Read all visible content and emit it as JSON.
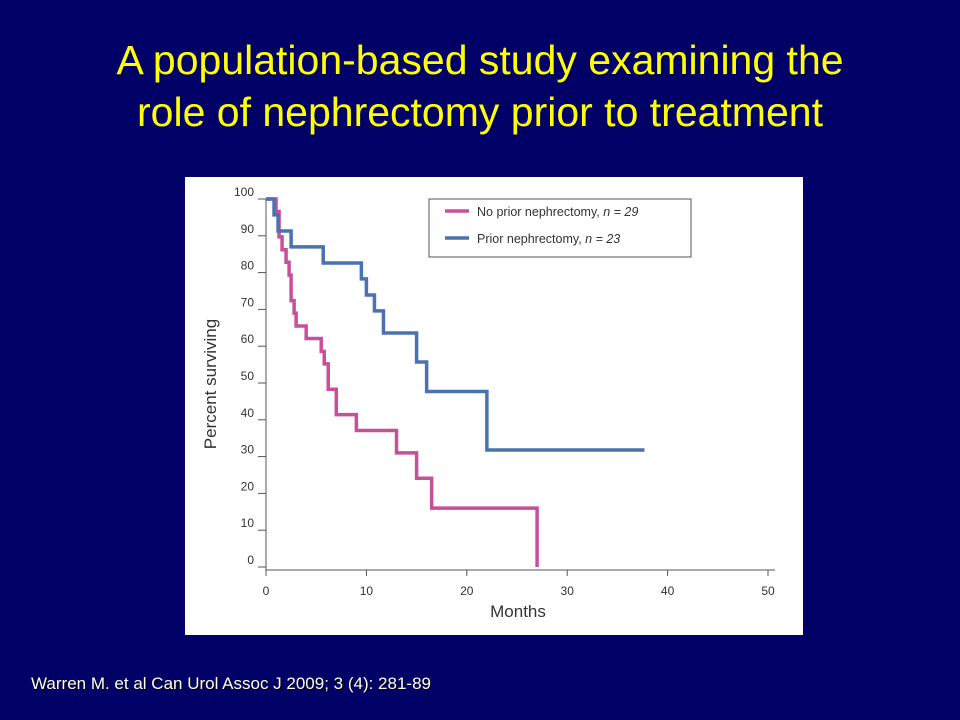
{
  "slide": {
    "title_line1": "A population-based study examining the",
    "title_line2": "role of nephrectomy prior to treatment",
    "citation": "Warren M. et al Can Urol Assoc J 2009; 3 (4): 281-89"
  },
  "chart_data": {
    "type": "line",
    "title": "",
    "xlabel": "Months",
    "ylabel": "Percent surviving",
    "xlim": [
      0,
      50
    ],
    "ylim": [
      0,
      100
    ],
    "xticks": [
      0,
      10,
      20,
      30,
      40,
      50
    ],
    "yticks": [
      0,
      10,
      20,
      30,
      40,
      50,
      60,
      70,
      80,
      90,
      100
    ],
    "grid": false,
    "legend_position": "top-right",
    "step": true,
    "series": [
      {
        "name": "No prior nephrectomy",
        "legend_label": "No prior nephrectomy, ",
        "legend_n": "n = 29",
        "color": "#c8509a",
        "x": [
          0,
          1,
          1.3,
          1.6,
          2,
          2.3,
          2.5,
          2.8,
          3,
          4,
          5.5,
          5.8,
          6.2,
          7,
          9,
          13,
          15,
          16.5,
          27,
          27
        ],
        "y": [
          100,
          96.6,
          89.7,
          86.2,
          82.8,
          79.3,
          72.4,
          69,
          65.5,
          62.1,
          58.6,
          55.2,
          48.3,
          41.4,
          37.1,
          31,
          24.1,
          16,
          16,
          0
        ]
      },
      {
        "name": "Prior nephrectomy",
        "legend_label": "Prior nephrectomy, ",
        "legend_n": "n = 23",
        "color": "#4a72b0",
        "x": [
          0,
          0.8,
          1.2,
          2.5,
          5.7,
          9.5,
          10,
          10.8,
          11.7,
          15,
          16,
          22,
          37.7
        ],
        "y": [
          100,
          95.7,
          91.3,
          87,
          82.6,
          78.3,
          73.9,
          69.6,
          63.6,
          55.7,
          47.7,
          31.8,
          31.8
        ]
      }
    ]
  }
}
